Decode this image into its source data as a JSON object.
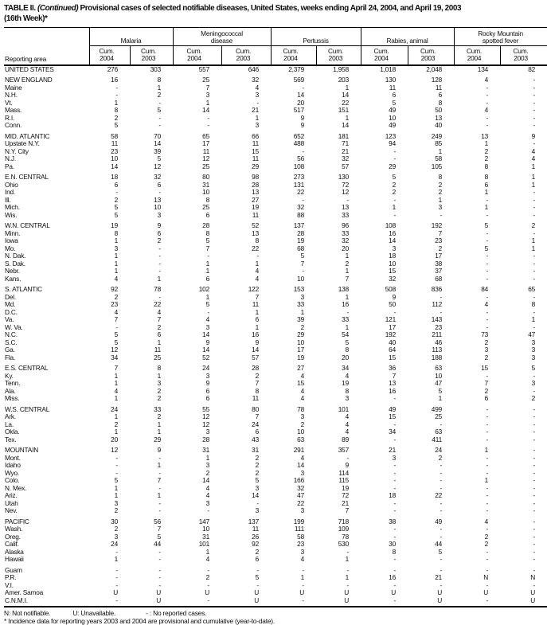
{
  "title": {
    "prefix": "TABLE II.",
    "continued": "(Continued)",
    "rest": "Provisional cases of selected notifiable diseases, United States, weeks ending April 24, 2004, and April 19, 2003",
    "line2": "(16th Week)*"
  },
  "table": {
    "area_label": "Reporting area",
    "cum_label": "Cum.",
    "years": [
      "2004",
      "2003"
    ],
    "groups": [
      [
        "Malaria"
      ],
      [
        "Meningococcal",
        "disease"
      ],
      [
        "Pertussis"
      ],
      [
        "Rabies, animal"
      ],
      [
        "Rocky Mountain",
        "spotted fever"
      ]
    ],
    "sections": [
      {
        "rows": [
          [
            "UNITED STATES",
            "276",
            "303",
            "557",
            "646",
            "2,379",
            "1,958",
            "1,018",
            "2,048",
            "134",
            "82"
          ]
        ]
      },
      {
        "rows": [
          [
            "NEW ENGLAND",
            "16",
            "8",
            "25",
            "32",
            "569",
            "203",
            "130",
            "128",
            "4",
            "-"
          ],
          [
            "Maine",
            "-",
            "1",
            "7",
            "4",
            "-",
            "1",
            "11",
            "11",
            "-",
            "-"
          ],
          [
            "N.H.",
            "-",
            "2",
            "3",
            "3",
            "14",
            "14",
            "6",
            "6",
            "-",
            "-"
          ],
          [
            "Vt.",
            "1",
            "-",
            "1",
            "-",
            "20",
            "22",
            "5",
            "8",
            "-",
            "-"
          ],
          [
            "Mass.",
            "8",
            "5",
            "14",
            "21",
            "517",
            "151",
            "49",
            "50",
            "4",
            "-"
          ],
          [
            "R.I.",
            "2",
            "-",
            "-",
            "1",
            "9",
            "1",
            "10",
            "13",
            "-",
            "-"
          ],
          [
            "Conn.",
            "5",
            "-",
            "-",
            "3",
            "9",
            "14",
            "49",
            "40",
            "-",
            "-"
          ]
        ]
      },
      {
        "rows": [
          [
            "MID. ATLANTIC",
            "58",
            "70",
            "65",
            "66",
            "652",
            "181",
            "123",
            "249",
            "13",
            "9"
          ],
          [
            "Upstate N.Y.",
            "11",
            "14",
            "17",
            "11",
            "488",
            "71",
            "94",
            "85",
            "1",
            "-"
          ],
          [
            "N.Y. City",
            "23",
            "39",
            "11",
            "15",
            "-",
            "21",
            "-",
            "1",
            "2",
            "4"
          ],
          [
            "N.J.",
            "10",
            "5",
            "12",
            "11",
            "56",
            "32",
            "-",
            "58",
            "2",
            "4"
          ],
          [
            "Pa.",
            "14",
            "12",
            "25",
            "29",
            "108",
            "57",
            "29",
            "105",
            "8",
            "1"
          ]
        ]
      },
      {
        "rows": [
          [
            "E.N. CENTRAL",
            "18",
            "32",
            "80",
            "98",
            "273",
            "130",
            "5",
            "8",
            "8",
            "1"
          ],
          [
            "Ohio",
            "6",
            "6",
            "31",
            "28",
            "131",
            "72",
            "2",
            "2",
            "6",
            "1"
          ],
          [
            "Ind.",
            "-",
            "-",
            "10",
            "13",
            "22",
            "12",
            "2",
            "2",
            "1",
            "-"
          ],
          [
            "Ill.",
            "2",
            "13",
            "8",
            "27",
            "-",
            "-",
            "-",
            "1",
            "-",
            "-"
          ],
          [
            "Mich.",
            "5",
            "10",
            "25",
            "19",
            "32",
            "13",
            "1",
            "3",
            "1",
            "-"
          ],
          [
            "Wis.",
            "5",
            "3",
            "6",
            "11",
            "88",
            "33",
            "-",
            "-",
            "-",
            "-"
          ]
        ]
      },
      {
        "rows": [
          [
            "W.N. CENTRAL",
            "19",
            "9",
            "28",
            "52",
            "137",
            "96",
            "108",
            "192",
            "5",
            "2"
          ],
          [
            "Minn.",
            "8",
            "6",
            "8",
            "13",
            "28",
            "33",
            "16",
            "7",
            "-",
            "-"
          ],
          [
            "Iowa",
            "1",
            "2",
            "5",
            "8",
            "19",
            "32",
            "14",
            "23",
            "-",
            "1"
          ],
          [
            "Mo.",
            "3",
            "-",
            "7",
            "22",
            "68",
            "20",
            "3",
            "2",
            "5",
            "1"
          ],
          [
            "N. Dak.",
            "1",
            "-",
            "-",
            "-",
            "5",
            "1",
            "18",
            "17",
            "-",
            "-"
          ],
          [
            "S. Dak.",
            "1",
            "-",
            "1",
            "1",
            "7",
            "2",
            "10",
            "38",
            "-",
            "-"
          ],
          [
            "Nebr.",
            "1",
            "-",
            "1",
            "4",
            "-",
            "1",
            "15",
            "37",
            "-",
            "-"
          ],
          [
            "Kans.",
            "4",
            "1",
            "6",
            "4",
            "10",
            "7",
            "32",
            "68",
            "-",
            "-"
          ]
        ]
      },
      {
        "rows": [
          [
            "S. ATLANTIC",
            "92",
            "78",
            "102",
            "122",
            "153",
            "138",
            "508",
            "836",
            "84",
            "65"
          ],
          [
            "Del.",
            "2",
            "-",
            "1",
            "7",
            "3",
            "1",
            "9",
            "-",
            "-",
            "-"
          ],
          [
            "Md.",
            "23",
            "22",
            "5",
            "11",
            "33",
            "16",
            "50",
            "112",
            "4",
            "8"
          ],
          [
            "D.C.",
            "4",
            "4",
            "-",
            "1",
            "1",
            "-",
            "-",
            "-",
            "-",
            "-"
          ],
          [
            "Va.",
            "7",
            "7",
            "4",
            "6",
            "39",
            "33",
            "121",
            "143",
            "-",
            "1"
          ],
          [
            "W. Va.",
            "-",
            "2",
            "3",
            "1",
            "2",
            "1",
            "17",
            "23",
            "-",
            "-"
          ],
          [
            "N.C.",
            "5",
            "6",
            "14",
            "16",
            "29",
            "54",
            "192",
            "211",
            "73",
            "47"
          ],
          [
            "S.C.",
            "5",
            "1",
            "9",
            "9",
            "10",
            "5",
            "40",
            "46",
            "2",
            "3"
          ],
          [
            "Ga.",
            "12",
            "11",
            "14",
            "14",
            "17",
            "8",
            "64",
            "113",
            "3",
            "3"
          ],
          [
            "Fla.",
            "34",
            "25",
            "52",
            "57",
            "19",
            "20",
            "15",
            "188",
            "2",
            "3"
          ]
        ]
      },
      {
        "rows": [
          [
            "E.S. CENTRAL",
            "7",
            "8",
            "24",
            "28",
            "27",
            "34",
            "36",
            "63",
            "15",
            "5"
          ],
          [
            "Ky.",
            "1",
            "1",
            "3",
            "2",
            "4",
            "4",
            "7",
            "10",
            "-",
            "-"
          ],
          [
            "Tenn.",
            "1",
            "3",
            "9",
            "7",
            "15",
            "19",
            "13",
            "47",
            "7",
            "3"
          ],
          [
            "Ala.",
            "4",
            "2",
            "6",
            "8",
            "4",
            "8",
            "16",
            "5",
            "2",
            "-"
          ],
          [
            "Miss.",
            "1",
            "2",
            "6",
            "11",
            "4",
            "3",
            "-",
            "1",
            "6",
            "2"
          ]
        ]
      },
      {
        "rows": [
          [
            "W.S. CENTRAL",
            "24",
            "33",
            "55",
            "80",
            "78",
            "101",
            "49",
            "499",
            "-",
            "-"
          ],
          [
            "Ark.",
            "1",
            "2",
            "12",
            "7",
            "3",
            "4",
            "15",
            "25",
            "-",
            "-"
          ],
          [
            "La.",
            "2",
            "1",
            "12",
            "24",
            "2",
            "4",
            "-",
            "-",
            "-",
            "-"
          ],
          [
            "Okla.",
            "1",
            "1",
            "3",
            "6",
            "10",
            "4",
            "34",
            "63",
            "-",
            "-"
          ],
          [
            "Tex.",
            "20",
            "29",
            "28",
            "43",
            "63",
            "89",
            "-",
            "411",
            "-",
            "-"
          ]
        ]
      },
      {
        "rows": [
          [
            "MOUNTAIN",
            "12",
            "9",
            "31",
            "31",
            "291",
            "357",
            "21",
            "24",
            "1",
            "-"
          ],
          [
            "Mont.",
            "-",
            "-",
            "1",
            "2",
            "4",
            "-",
            "3",
            "2",
            "-",
            "-"
          ],
          [
            "Idaho",
            "-",
            "1",
            "3",
            "2",
            "14",
            "9",
            "-",
            "-",
            "-",
            "-"
          ],
          [
            "Wyo.",
            "-",
            "-",
            "2",
            "2",
            "3",
            "114",
            "-",
            "-",
            "-",
            "-"
          ],
          [
            "Colo.",
            "5",
            "7",
            "14",
            "5",
            "166",
            "115",
            "-",
            "-",
            "1",
            "-"
          ],
          [
            "N. Mex.",
            "1",
            "-",
            "4",
            "3",
            "32",
            "19",
            "-",
            "-",
            "-",
            "-"
          ],
          [
            "Ariz.",
            "1",
            "1",
            "4",
            "14",
            "47",
            "72",
            "18",
            "22",
            "-",
            "-"
          ],
          [
            "Utah",
            "3",
            "-",
            "3",
            "-",
            "22",
            "21",
            "-",
            "-",
            "-",
            "-"
          ],
          [
            "Nev.",
            "2",
            "-",
            "-",
            "3",
            "3",
            "7",
            "-",
            "-",
            "-",
            "-"
          ]
        ]
      },
      {
        "rows": [
          [
            "PACIFIC",
            "30",
            "56",
            "147",
            "137",
            "199",
            "718",
            "38",
            "49",
            "4",
            "-"
          ],
          [
            "Wash.",
            "2",
            "7",
            "10",
            "11",
            "111",
            "109",
            "-",
            "-",
            "-",
            "-"
          ],
          [
            "Oreg.",
            "3",
            "5",
            "31",
            "26",
            "58",
            "78",
            "-",
            "-",
            "2",
            "-"
          ],
          [
            "Calif.",
            "24",
            "44",
            "101",
            "92",
            "23",
            "530",
            "30",
            "44",
            "2",
            "-"
          ],
          [
            "Alaska",
            "-",
            "-",
            "1",
            "2",
            "3",
            "-",
            "8",
            "5",
            "-",
            "-"
          ],
          [
            "Hawaii",
            "1",
            "-",
            "4",
            "6",
            "4",
            "1",
            "-",
            "-",
            "-",
            "-"
          ]
        ]
      },
      {
        "rows": [
          [
            "Guam",
            "-",
            "-",
            "-",
            "-",
            "-",
            "-",
            "-",
            "-",
            "-",
            "-"
          ],
          [
            "P.R.",
            "-",
            "-",
            "2",
            "5",
            "1",
            "1",
            "16",
            "21",
            "N",
            "N"
          ],
          [
            "V.I.",
            "-",
            "-",
            "-",
            "-",
            "-",
            "-",
            "-",
            "-",
            "-",
            "-"
          ],
          [
            "Amer. Samoa",
            "U",
            "U",
            "U",
            "U",
            "U",
            "U",
            "U",
            "U",
            "U",
            "U"
          ],
          [
            "C.N.M.I.",
            "-",
            "U",
            "-",
            "U",
            "-",
            "U",
            "-",
            "U",
            "-",
            "U"
          ]
        ]
      }
    ]
  },
  "footnotes": {
    "legend": [
      "N: Not notifiable.",
      "U: Unavailable.",
      "- : No reported cases."
    ],
    "note": "* Incidence data for reporting years 2003 and 2004 are provisional and cumulative (year-to-date)."
  }
}
